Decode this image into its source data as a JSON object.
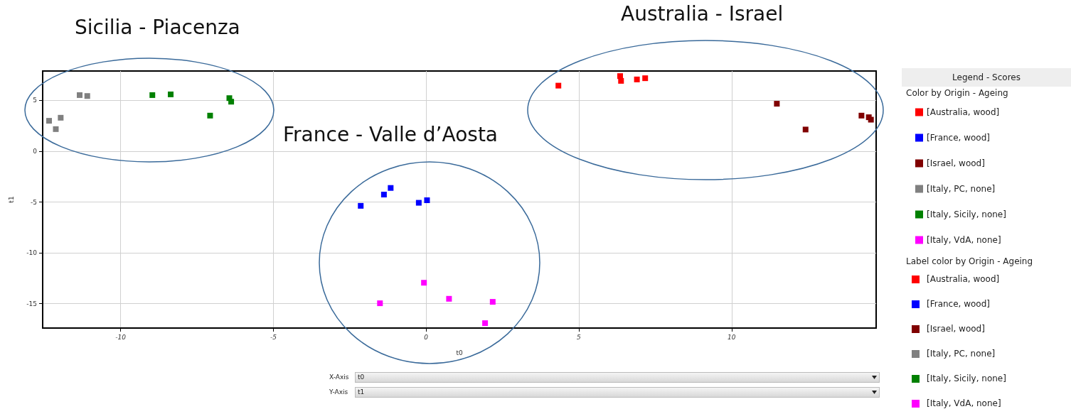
{
  "chart_data": {
    "type": "scatter",
    "xlabel": "t0",
    "ylabel": "t1",
    "legend_title": "Legend - Scores",
    "legend": "right",
    "marker": "square",
    "grid": true,
    "xlim": [
      -12.55,
      14.73
    ],
    "xticks": [
      -10,
      -5,
      0,
      5,
      10
    ],
    "ylim": [
      -17.4,
      7.9
    ],
    "yticks": [
      -15,
      -10,
      -5,
      0,
      5
    ],
    "series": [
      {
        "name": "[Australia, wood]",
        "color": "#ff0000",
        "x": [
          4.33,
          6.35,
          6.38,
          6.9,
          7.17
        ],
        "values": [
          6.46,
          7.4,
          6.93,
          7.07,
          7.19
        ]
      },
      {
        "name": "[France, wood]",
        "color": "#0000ff",
        "x": [
          -2.14,
          -1.38,
          -1.16,
          -0.24,
          0.03
        ],
        "values": [
          -5.37,
          -4.26,
          -3.61,
          -5.07,
          -4.82
        ]
      },
      {
        "name": "[Israel, wood]",
        "color": "#800000",
        "x": [
          11.48,
          12.42,
          14.25,
          14.49,
          14.56
        ],
        "values": [
          4.68,
          2.14,
          3.51,
          3.35,
          3.11
        ]
      },
      {
        "name": "[Italy, PC, none]",
        "color": "#808080",
        "x": [
          -12.34,
          -12.12,
          -11.96,
          -11.34,
          -11.09
        ],
        "values": [
          3.0,
          2.18,
          3.3,
          5.53,
          5.44
        ]
      },
      {
        "name": "[Italy, Sicily, none]",
        "color": "#008000",
        "x": [
          -8.96,
          -8.36,
          -7.07,
          -6.44,
          -6.38
        ],
        "values": [
          5.53,
          5.6,
          3.51,
          5.23,
          4.88
        ]
      },
      {
        "name": "[Italy, VdA, none]",
        "color": "#ff00ff",
        "x": [
          -1.51,
          -0.07,
          0.75,
          2.18,
          1.93
        ],
        "values": [
          -14.96,
          -12.94,
          -14.52,
          -14.82,
          -16.92
        ]
      }
    ],
    "annotations": [
      "Sicilia - Piacenza",
      "France - Valle d’Aosta",
      "Australia - Israel",
      "Color by Origin - Ageing",
      "Label color by Origin - Ageing",
      "X-Axis",
      "t0",
      "Y-Axis",
      "t1"
    ]
  }
}
